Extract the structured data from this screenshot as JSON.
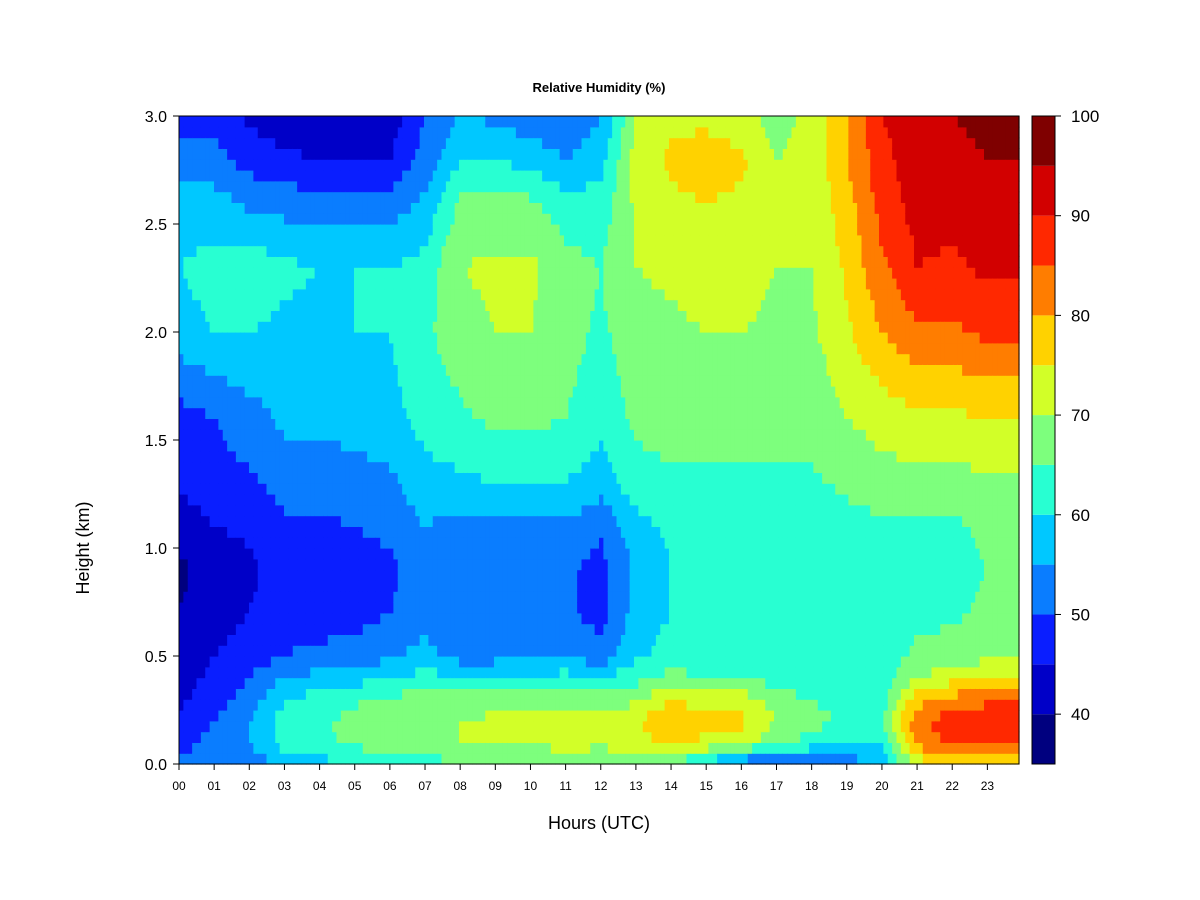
{
  "chart_data": {
    "type": "heatmap",
    "title": "Relative Humidity (%)",
    "xlabel": "Hours (UTC)",
    "ylabel": "Height (km)",
    "x_ticks": [
      "00",
      "01",
      "02",
      "03",
      "04",
      "05",
      "06",
      "07",
      "08",
      "09",
      "10",
      "11",
      "12",
      "13",
      "14",
      "15",
      "16",
      "17",
      "18",
      "19",
      "20",
      "21",
      "22",
      "23"
    ],
    "x_range": [
      0,
      23.9
    ],
    "y_ticks": [
      "0.0",
      "0.5",
      "1.0",
      "1.5",
      "2.0",
      "2.5",
      "3.0"
    ],
    "y_range": [
      0,
      3.0
    ],
    "colorbar": {
      "levels": [
        35,
        40,
        45,
        50,
        55,
        60,
        65,
        70,
        75,
        80,
        85,
        90,
        95,
        100
      ],
      "colors": [
        "#00007f",
        "#0000c8",
        "#0a1eff",
        "#0a7dff",
        "#00c8ff",
        "#28ffd2",
        "#7dff7d",
        "#d2ff28",
        "#ffd200",
        "#ff7d00",
        "#ff2800",
        "#d20000",
        "#7f0000"
      ],
      "tick_labels": [
        "40",
        "50",
        "60",
        "70",
        "80",
        "90",
        "100"
      ]
    },
    "height_levels_km": [
      0.0,
      0.1,
      0.2,
      0.3,
      0.4,
      0.5,
      0.7,
      0.9,
      1.1,
      1.3,
      1.6,
      2.0,
      2.3,
      2.6,
      2.8,
      3.0
    ],
    "hourly_profiles": [
      {
        "hour": 0,
        "rh": [
          52,
          48,
          46,
          44,
          43,
          42,
          40,
          39,
          42,
          46,
          48,
          58,
          60,
          57,
          52,
          48
        ]
      },
      {
        "hour": 1,
        "rh": [
          50,
          52,
          50,
          48,
          46,
          45,
          43,
          42,
          45,
          48,
          50,
          60,
          62,
          57,
          52,
          48
        ]
      },
      {
        "hour": 2,
        "rh": [
          52,
          55,
          55,
          52,
          50,
          47,
          45,
          44,
          46,
          49,
          53,
          60,
          63,
          54,
          48,
          44
        ]
      },
      {
        "hour": 3,
        "rh": [
          56,
          62,
          62,
          60,
          55,
          50,
          48,
          47,
          49,
          52,
          56,
          59,
          61,
          53,
          46,
          42
        ]
      },
      {
        "hour": 4,
        "rh": [
          58,
          64,
          64,
          62,
          57,
          51,
          48,
          47,
          49,
          52,
          56,
          59,
          60,
          52,
          45,
          41
        ]
      },
      {
        "hour": 5,
        "rh": [
          60,
          66,
          67,
          64,
          58,
          52,
          48,
          48,
          50,
          53,
          57,
          60,
          60,
          52,
          45,
          41
        ]
      },
      {
        "hour": 6,
        "rh": [
          62,
          68,
          69,
          66,
          60,
          54,
          50,
          49,
          51,
          54,
          58,
          60,
          60,
          52,
          45,
          42
        ]
      },
      {
        "hour": 7,
        "rh": [
          63,
          69,
          70,
          67,
          62,
          57,
          53,
          53,
          55,
          58,
          62,
          64,
          62,
          56,
          52,
          50
        ]
      },
      {
        "hour": 8,
        "rh": [
          64,
          70,
          70,
          67,
          60,
          53,
          50,
          50,
          53,
          59,
          64,
          68,
          70,
          66,
          60,
          55
        ]
      },
      {
        "hour": 9,
        "rh": [
          64,
          70,
          71,
          68,
          61,
          53,
          50,
          50,
          53,
          60,
          66,
          70,
          71,
          67,
          60,
          54
        ]
      },
      {
        "hour": 10,
        "rh": [
          65,
          70,
          71,
          68,
          61,
          53,
          50,
          50,
          53,
          60,
          66,
          70,
          71,
          66,
          58,
          52
        ]
      },
      {
        "hour": 11,
        "rh": [
          67,
          72,
          73,
          68,
          62,
          55,
          51,
          51,
          54,
          60,
          65,
          67,
          67,
          62,
          55,
          50
        ]
      },
      {
        "hour": 12,
        "rh": [
          66,
          71,
          72,
          67,
          60,
          52,
          48,
          48,
          51,
          57,
          62,
          64,
          65,
          62,
          58,
          55
        ]
      },
      {
        "hour": 13,
        "rh": [
          67,
          73,
          74,
          69,
          63,
          59,
          57,
          56,
          58,
          63,
          66,
          68,
          70,
          71,
          72,
          70
        ]
      },
      {
        "hour": 14,
        "rh": [
          65,
          76,
          80,
          75,
          67,
          62,
          60,
          60,
          61,
          64,
          67,
          69,
          71,
          74,
          76,
          74
        ]
      },
      {
        "hour": 15,
        "rh": [
          58,
          74,
          76,
          73,
          65,
          61,
          60,
          60,
          61,
          64,
          67,
          70,
          72,
          75,
          77,
          74
        ]
      },
      {
        "hour": 16,
        "rh": [
          50,
          72,
          76,
          73,
          66,
          61,
          60,
          60,
          61,
          64,
          68,
          70,
          72,
          74,
          76,
          72
        ]
      },
      {
        "hour": 17,
        "rh": [
          49,
          66,
          70,
          67,
          63,
          61,
          60,
          60,
          61,
          64,
          67,
          69,
          70,
          70,
          70,
          68
        ]
      },
      {
        "hour": 18,
        "rh": [
          50,
          63,
          67,
          65,
          62,
          60,
          60,
          60,
          61,
          64,
          67,
          69,
          70,
          71,
          72,
          71
        ]
      },
      {
        "hour": 19,
        "rh": [
          52,
          60,
          64,
          63,
          61,
          61,
          61,
          61,
          63,
          66,
          70,
          74,
          76,
          78,
          80,
          79
        ]
      },
      {
        "hour": 20,
        "rh": [
          56,
          61,
          64,
          63,
          62,
          62,
          62,
          62,
          64,
          68,
          72,
          80,
          84,
          87,
          88,
          90
        ]
      },
      {
        "hour": 21,
        "rh": [
          72,
          82,
          84,
          78,
          70,
          66,
          64,
          63,
          64,
          68,
          74,
          84,
          90,
          92,
          94,
          94
        ]
      },
      {
        "hour": 22,
        "rh": [
          74,
          86,
          88,
          82,
          73,
          67,
          64,
          63,
          64,
          68,
          74,
          84,
          89,
          92,
          94,
          95
        ]
      },
      {
        "hour": 23,
        "rh": [
          72,
          86,
          89,
          84,
          75,
          69,
          66,
          65,
          66,
          69,
          75,
          86,
          91,
          93,
          95,
          96
        ]
      }
    ]
  }
}
